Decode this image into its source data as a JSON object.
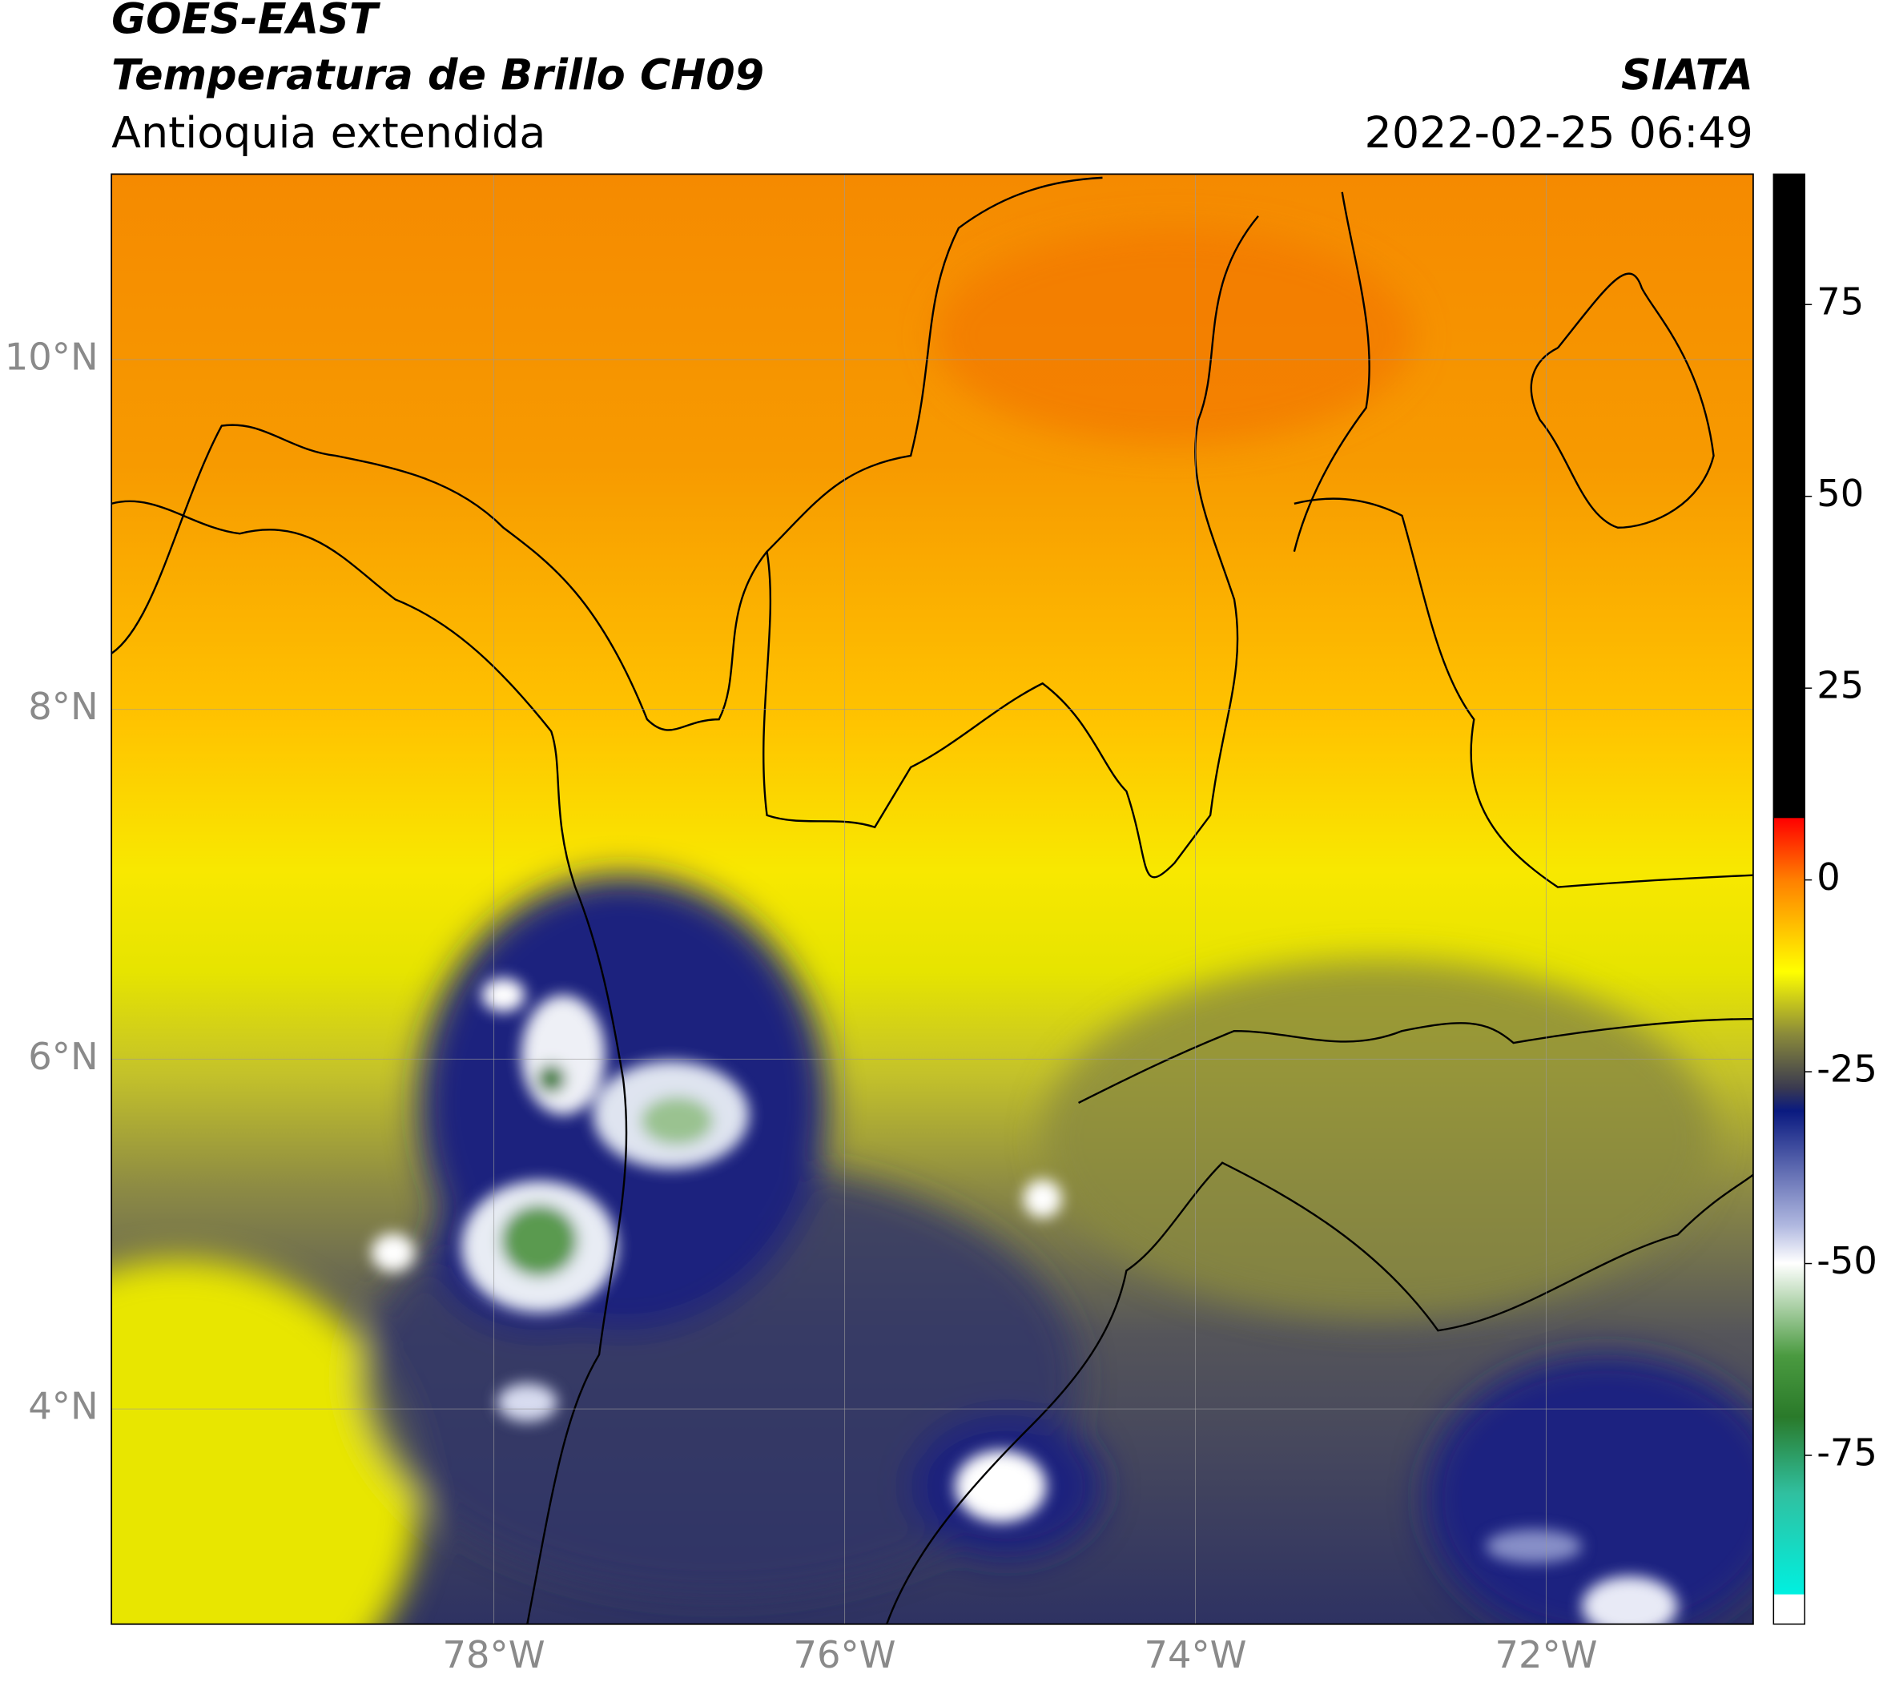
{
  "header": {
    "title": "GOES-EAST",
    "subtitle": "Temperatura de Brillo CH09",
    "region": "Antioquia extendida",
    "source": "SIATA",
    "datetime": "2022-02-25 06:49"
  },
  "map": {
    "xlim": [
      -80.18,
      -70.82
    ],
    "ylim": [
      2.77,
      11.06
    ],
    "xticks": [
      {
        "value": -78,
        "label": "78°W"
      },
      {
        "value": -76,
        "label": "76°W"
      },
      {
        "value": -74,
        "label": "74°W"
      },
      {
        "value": -72,
        "label": "72°W"
      }
    ],
    "yticks": [
      {
        "value": 10,
        "label": "10°N"
      },
      {
        "value": 8,
        "label": "8°N"
      },
      {
        "value": 6,
        "label": "6°N"
      },
      {
        "value": 4,
        "label": "4°N"
      }
    ],
    "grid": true
  },
  "colorbar": {
    "lim": [
      -97,
      92
    ],
    "ticks": [
      75,
      50,
      25,
      0,
      -25,
      -50,
      -75
    ]
  }
}
